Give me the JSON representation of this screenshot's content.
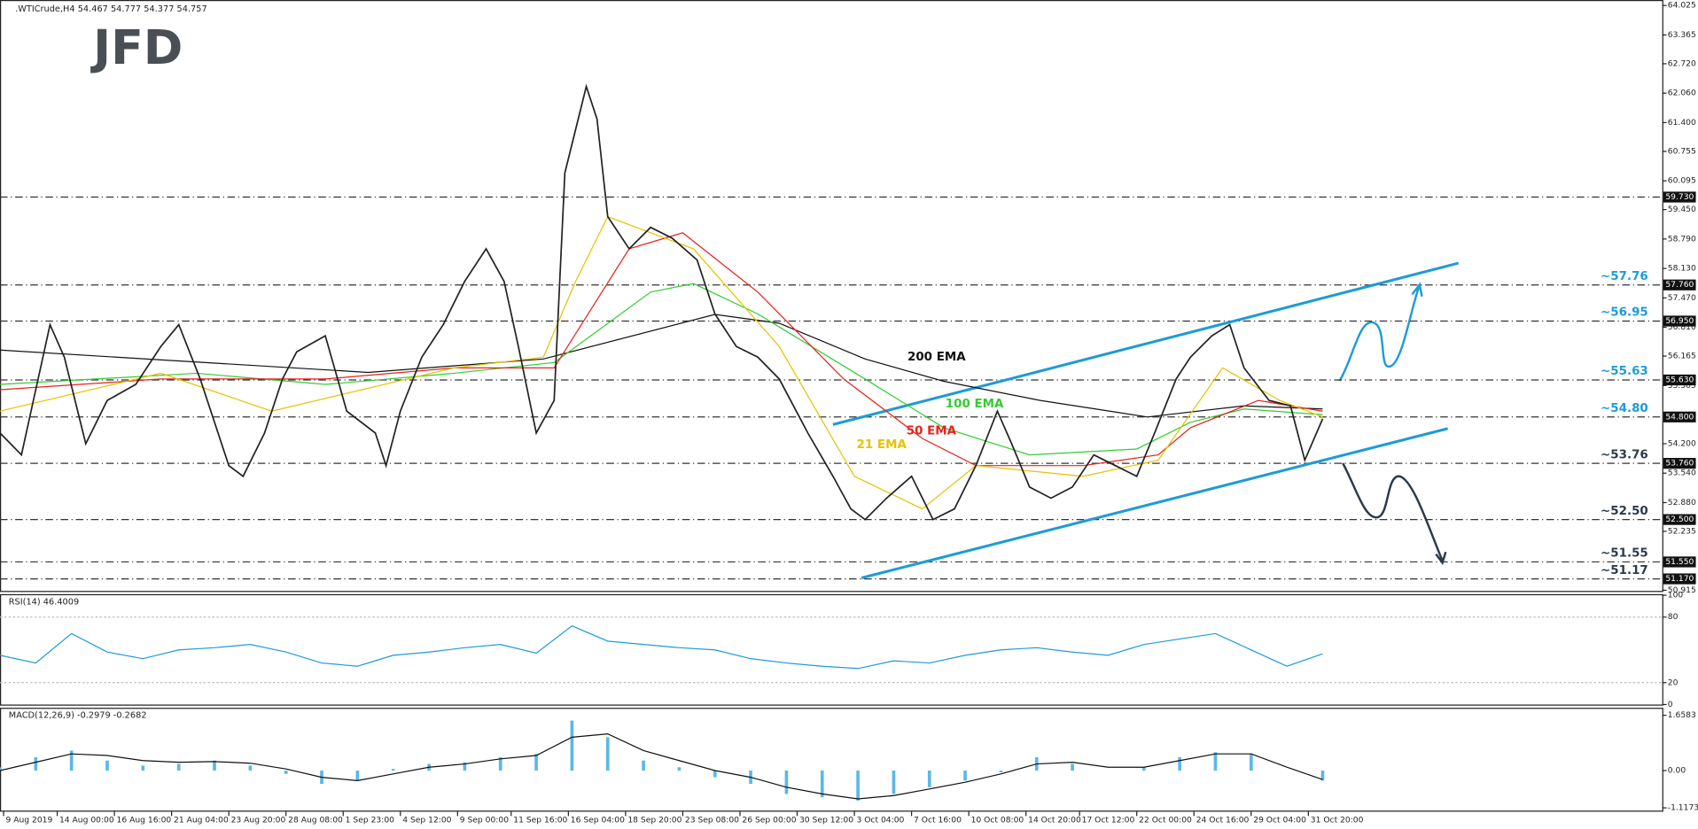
{
  "chart_data": [
    {
      "type": "line",
      "title": ".WTICrude,H4 54.467 54.777 54.377 54.757",
      "logo": "JFD",
      "color": "#222222",
      "x": [
        0,
        6,
        14,
        18,
        24,
        30,
        38,
        45,
        50,
        56,
        64,
        68,
        74,
        79,
        83,
        91,
        97,
        105,
        108,
        112,
        118,
        124,
        130,
        136,
        141,
        145,
        150,
        155,
        158,
        161,
        164,
        167,
        170,
        176,
        182,
        188,
        195,
        200,
        206,
        212,
        218,
        226,
        233,
        238,
        242,
        248,
        255,
        261,
        267,
        273,
        279,
        283,
        288,
        294,
        300,
        306,
        312,
        318,
        323,
        329,
        333,
        339,
        344,
        348,
        355,
        361,
        365,
        370
      ],
      "values": [
        54.44,
        53.95,
        56.87,
        56.14,
        54.2,
        55.17,
        55.53,
        56.38,
        56.87,
        55.65,
        53.71,
        53.47,
        54.44,
        55.65,
        56.26,
        56.62,
        54.93,
        54.44,
        53.71,
        54.93,
        56.14,
        56.87,
        57.84,
        58.57,
        57.84,
        56.38,
        54.44,
        55.17,
        60.27,
        61.24,
        62.21,
        61.48,
        59.29,
        58.57,
        59.05,
        58.81,
        58.32,
        57.11,
        56.38,
        56.14,
        55.65,
        54.44,
        53.47,
        52.74,
        52.5,
        52.98,
        53.47,
        52.5,
        52.74,
        53.71,
        54.93,
        54.2,
        53.23,
        52.98,
        53.23,
        53.95,
        53.71,
        53.47,
        54.44,
        55.65,
        56.14,
        56.62,
        56.87,
        55.9,
        55.17,
        55.05,
        53.83,
        54.757
      ],
      "series": [
        {
          "name": "200 EMA",
          "color": "#111111",
          "x": [
            0,
            103,
            152,
            200,
            218,
            242,
            264,
            291,
            321,
            348,
            370
          ],
          "values": [
            56.3,
            55.8,
            56.1,
            57.1,
            56.9,
            56.1,
            55.6,
            55.17,
            54.8,
            55.05,
            54.98
          ]
        },
        {
          "name": "100 EMA",
          "color": "#33cc33",
          "x": [
            0,
            55,
            91,
            127,
            155,
            182,
            194,
            212,
            242,
            264,
            288,
            318,
            333,
            348,
            370
          ],
          "values": [
            55.53,
            55.78,
            55.53,
            55.78,
            56.02,
            57.6,
            57.79,
            57.11,
            55.65,
            54.56,
            53.95,
            54.08,
            54.68,
            54.98,
            54.85
          ]
        },
        {
          "name": "50 EMA",
          "color": "#e8221b",
          "x": [
            0,
            45,
            91,
            127,
            155,
            176,
            191,
            212,
            236,
            258,
            273,
            303,
            324,
            333,
            352,
            370
          ],
          "values": [
            55.41,
            55.65,
            55.65,
            55.9,
            55.9,
            58.57,
            58.93,
            57.6,
            55.65,
            54.32,
            53.71,
            53.71,
            53.95,
            54.56,
            55.17,
            54.93
          ]
        },
        {
          "name": "21 EMA",
          "color": "#e6c200",
          "x": [
            0,
            45,
            76,
            127,
            152,
            161,
            170,
            194,
            218,
            239,
            258,
            273,
            303,
            324,
            342,
            358,
            370
          ],
          "values": [
            54.93,
            55.78,
            54.93,
            55.9,
            56.14,
            57.84,
            59.29,
            58.57,
            56.38,
            53.47,
            52.74,
            53.71,
            53.47,
            53.83,
            55.9,
            55.17,
            54.8
          ]
        }
      ],
      "trendlines": [
        {
          "x": [
            233,
            408
          ],
          "values": [
            54.63,
            58.25
          ]
        },
        {
          "x": [
            241,
            405
          ],
          "values": [
            51.19,
            54.54
          ]
        }
      ],
      "trend_color": "#1e9bd7",
      "levels": [
        {
          "value": 59.73,
          "label": "59.730"
        },
        {
          "value": 57.76,
          "label": "57.760",
          "note": "~57.76",
          "color": "#1e9bd7"
        },
        {
          "value": 56.95,
          "label": "56.950",
          "note": "~56.95",
          "color": "#1e9bd7"
        },
        {
          "value": 55.63,
          "label": "55.630",
          "note": "~55.63",
          "color": "#1e9bd7"
        },
        {
          "value": 54.8,
          "label": "54.800",
          "note": "~54.80",
          "color": "#1e9bd7"
        },
        {
          "value": 53.76,
          "label": "53.760",
          "note": "~53.76",
          "color": "#2b3a4a"
        },
        {
          "value": 52.5,
          "label": "52.500",
          "note": "~52.50",
          "color": "#2b3a4a"
        },
        {
          "value": 51.55,
          "label": "51.550",
          "note": "~51.55",
          "color": "#2b3a4a"
        },
        {
          "value": 51.17,
          "label": "51.170",
          "note": "~51.17",
          "color": "#2b3a4a"
        }
      ],
      "xlim": [
        0,
        465
      ],
      "ylim": [
        50.9,
        64.1
      ],
      "yticks": [
        64.025,
        63.365,
        {
          "value": 62.72,
          "label": "62.720"
        },
        {
          "value": 62.06,
          "label": "62.060"
        },
        {
          "value": 61.4,
          "label": "61.400"
        },
        60.755,
        60.095,
        {
          "value": 59.45,
          "label": "59.450"
        },
        {
          "value": 58.79,
          "label": "58.790"
        },
        {
          "value": 58.13,
          "label": "58.130"
        },
        {
          "value": 57.47,
          "label": "57.470"
        },
        {
          "value": 56.81,
          "label": "56.810"
        },
        56.165,
        55.505,
        {
          "value": 54.2,
          "label": "54.200"
        },
        {
          "value": 53.54,
          "label": "53.540"
        },
        {
          "value": 52.88,
          "label": "52.880"
        },
        52.235,
        50.915
      ],
      "xticks": [
        {
          "value": 1,
          "label": "9 Aug 2019"
        },
        {
          "value": 16,
          "label": "14 Aug 00:00"
        },
        {
          "value": 32,
          "label": "16 Aug 16:00"
        },
        {
          "value": 48,
          "label": "21 Aug 04:00"
        },
        {
          "value": 64,
          "label": "23 Aug 20:00"
        },
        {
          "value": 80,
          "label": "28 Aug 08:00"
        },
        {
          "value": 96,
          "label": "1 Sep 23:00"
        },
        {
          "value": 112,
          "label": "4 Sep 12:00"
        },
        {
          "value": 128,
          "label": "9 Sep 00:00"
        },
        {
          "value": 143,
          "label": "11 Sep 16:00"
        },
        {
          "value": 159,
          "label": "16 Sep 04:00"
        },
        {
          "value": 175,
          "label": "18 Sep 20:00"
        },
        {
          "value": 191,
          "label": "23 Sep 08:00"
        },
        {
          "value": 207,
          "label": "26 Sep 00:00"
        },
        {
          "value": 223,
          "label": "30 Sep 12:00"
        },
        {
          "value": 239,
          "label": "3 Oct 04:00"
        },
        {
          "value": 255,
          "label": "7 Oct 16:00"
        },
        {
          "value": 271,
          "label": "10 Oct 08:00"
        },
        {
          "value": 287,
          "label": "14 Oct 20:00"
        },
        {
          "value": 302,
          "label": "17 Oct 12:00"
        },
        {
          "value": 318,
          "label": "22 Oct 00:00"
        },
        {
          "value": 334,
          "label": "24 Oct 16:00"
        },
        {
          "value": 350,
          "label": "29 Oct 04:00"
        },
        {
          "value": 366,
          "label": "31 Oct 20:00"
        }
      ]
    },
    {
      "type": "line",
      "title": "RSI(14) 46.4009",
      "color": "#1e9bd7",
      "x": [
        0,
        10,
        20,
        30,
        40,
        50,
        60,
        70,
        80,
        90,
        100,
        110,
        120,
        130,
        140,
        150,
        160,
        170,
        180,
        190,
        200,
        210,
        220,
        230,
        240,
        250,
        260,
        270,
        280,
        290,
        300,
        310,
        320,
        330,
        340,
        350,
        360,
        370
      ],
      "values": [
        45,
        38,
        65,
        48,
        42,
        50,
        52,
        55,
        48,
        38,
        35,
        45,
        48,
        52,
        55,
        47,
        72,
        58,
        55,
        52,
        50,
        42,
        38,
        35,
        33,
        40,
        38,
        45,
        50,
        52,
        48,
        45,
        55,
        60,
        65,
        50,
        35,
        46.4
      ],
      "xlim": [
        0,
        465
      ],
      "ylim": [
        0,
        100
      ],
      "yticks": [
        0,
        20,
        80,
        100
      ]
    },
    {
      "type": "macd",
      "title": "MACD(12,26,9) -0.2979 -0.2682",
      "color": "#5bb8e6",
      "signal_color": "#111111",
      "x": [
        0,
        10,
        20,
        30,
        40,
        50,
        60,
        70,
        80,
        90,
        100,
        110,
        120,
        130,
        140,
        150,
        160,
        170,
        180,
        190,
        200,
        210,
        220,
        230,
        240,
        250,
        260,
        270,
        280,
        290,
        300,
        310,
        320,
        330,
        340,
        350,
        360,
        370
      ],
      "values": [
        0.1,
        0.4,
        0.6,
        0.3,
        0.15,
        0.2,
        0.3,
        0.15,
        -0.1,
        -0.4,
        -0.3,
        0.05,
        0.2,
        0.25,
        0.4,
        0.5,
        1.5,
        1.0,
        0.3,
        0.1,
        -0.2,
        -0.4,
        -0.7,
        -0.8,
        -0.9,
        -0.7,
        -0.5,
        -0.3,
        -0.05,
        0.4,
        0.2,
        0.0,
        0.1,
        0.4,
        0.55,
        0.5,
        0.0,
        -0.3
      ],
      "signal": [
        0.0,
        0.25,
        0.5,
        0.45,
        0.3,
        0.25,
        0.27,
        0.22,
        0.05,
        -0.2,
        -0.3,
        -0.1,
        0.1,
        0.2,
        0.35,
        0.45,
        1.0,
        1.1,
        0.6,
        0.3,
        0.0,
        -0.2,
        -0.5,
        -0.7,
        -0.85,
        -0.75,
        -0.55,
        -0.35,
        -0.1,
        0.2,
        0.25,
        0.1,
        0.1,
        0.3,
        0.5,
        0.5,
        0.1,
        -0.27
      ],
      "xlim": [
        0,
        465
      ],
      "ylim": [
        -1.2,
        1.85
      ],
      "yticks": [
        1.6583,
        {
          "value": 0,
          "label": "0.00"
        },
        -1.1173
      ]
    }
  ]
}
